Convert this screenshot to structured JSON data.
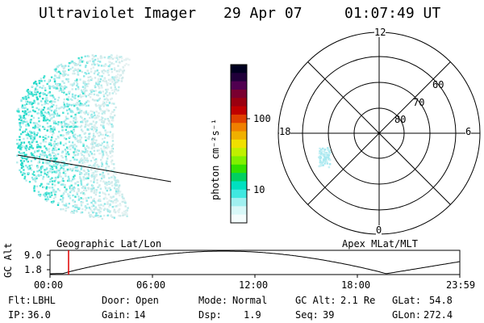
{
  "header": {
    "instrument": "Ultraviolet Imager",
    "date": "29 Apr 07",
    "time": "01:07:49 UT"
  },
  "colorbar": {
    "label": "photon cm⁻²s⁻¹",
    "ticks": [
      "100",
      "10"
    ],
    "colors": [
      "#000020",
      "#20003a",
      "#500050",
      "#7a0030",
      "#9a0010",
      "#c00000",
      "#e04000",
      "#f08000",
      "#f0b000",
      "#f0e000",
      "#c0f000",
      "#80f000",
      "#30e000",
      "#00d060",
      "#00e0c0",
      "#40e8e0",
      "#a0f0f0",
      "#d8f8f8",
      "#f4fcfc"
    ]
  },
  "polar": {
    "mlt_labels": {
      "top": "12",
      "left": "18",
      "right": "6",
      "bottom": "0"
    },
    "lat_labels": [
      "60",
      "70",
      "80"
    ]
  },
  "timeline": {
    "ylabel": "GC Alt",
    "y_ticks": [
      "9.0",
      "1.8"
    ],
    "left_label": "Geographic Lat/Lon",
    "right_label": "Apex MLat/MLT",
    "x_ticks": [
      "00:00",
      "06:00",
      "12:00",
      "18:00",
      "23:59"
    ],
    "marker_color": "#e00000"
  },
  "info": {
    "row1": [
      {
        "key": "Flt:",
        "value": "LBHL"
      },
      {
        "key": "Door:",
        "value": "Open"
      },
      {
        "key": "Mode:",
        "value": "Normal"
      },
      {
        "key": "GC Alt:",
        "value": "2.1 Re"
      },
      {
        "key": "GLat:",
        "value": "54.8"
      }
    ],
    "row2": [
      {
        "key": "IP:",
        "value": "36.0"
      },
      {
        "key": "Gain:",
        "value": "14"
      },
      {
        "key": "Dsp:",
        "value": "1.9"
      },
      {
        "key": "Seq:",
        "value": "39"
      },
      {
        "key": "GLon:",
        "value": "272.4"
      }
    ]
  }
}
